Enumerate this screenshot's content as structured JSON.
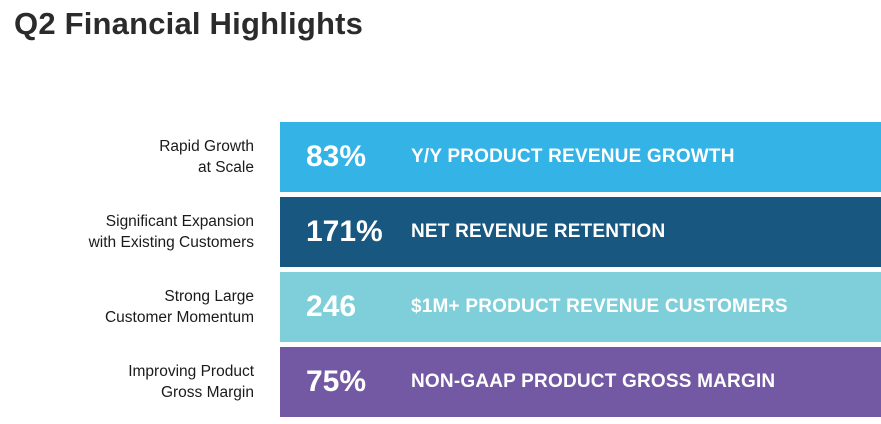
{
  "title": "Q2 Financial Highlights",
  "colors": {
    "row1": "#33b3e6",
    "row2": "#185780",
    "row3": "#7ecfd9",
    "row4": "#7359a3"
  },
  "rows": [
    {
      "label_line1": "Rapid Growth",
      "label_line2": "at Scale",
      "metric": "83%",
      "description": "Y/Y PRODUCT REVENUE GROWTH"
    },
    {
      "label_line1": "Significant Expansion",
      "label_line2": "with Existing Customers",
      "metric": "171%",
      "description": "NET REVENUE RETENTION"
    },
    {
      "label_line1": "Strong Large",
      "label_line2": "Customer Momentum",
      "metric": "246",
      "description": "$1M+ PRODUCT REVENUE CUSTOMERS"
    },
    {
      "label_line1": "Improving Product",
      "label_line2": "Gross Margin",
      "metric": "75%",
      "description": "NON-GAAP PRODUCT GROSS MARGIN"
    }
  ]
}
